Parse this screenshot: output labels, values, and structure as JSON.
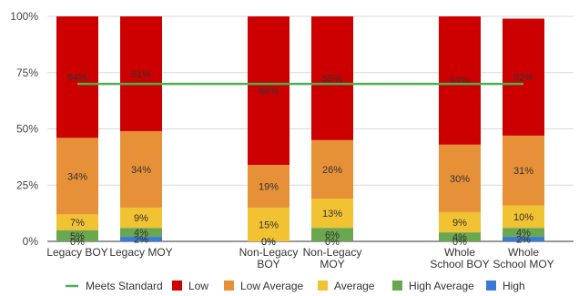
{
  "chart_data": {
    "type": "bar",
    "stacked": true,
    "percent_stacked": true,
    "categories": [
      {
        "lines": [
          "Legacy BOY"
        ]
      },
      {
        "lines": [
          "Legacy MOY"
        ]
      },
      null,
      {
        "lines": [
          "Non-Legacy",
          "BOY"
        ]
      },
      {
        "lines": [
          "Non-Legacy",
          "MOY"
        ]
      },
      null,
      {
        "lines": [
          "Whole",
          "School BOY"
        ]
      },
      {
        "lines": [
          "Whole",
          "School MOY"
        ]
      }
    ],
    "series": [
      {
        "name": "High",
        "color": "#3c78d8",
        "values": [
          0,
          2,
          null,
          0,
          0,
          null,
          0,
          2
        ],
        "labels": [
          "0%",
          "2%",
          null,
          "0%",
          "0%",
          null,
          "0%",
          "2%"
        ]
      },
      {
        "name": "High Average",
        "color": "#6aa84f",
        "values": [
          5,
          4,
          null,
          0,
          6,
          null,
          4,
          4
        ],
        "labels": [
          "5%",
          "4%",
          null,
          "0%",
          "6%",
          null,
          "4%",
          "4%"
        ]
      },
      {
        "name": "Average",
        "color": "#f1c232",
        "values": [
          7,
          9,
          null,
          15,
          13,
          null,
          9,
          10
        ],
        "labels": [
          "7%",
          "9%",
          null,
          "15%",
          "13%",
          null,
          "9%",
          "10%"
        ]
      },
      {
        "name": "Low Average",
        "color": "#e69138",
        "values": [
          34,
          34,
          null,
          19,
          26,
          null,
          30,
          31
        ],
        "labels": [
          "34%",
          "34%",
          null,
          "19%",
          "26%",
          null,
          "30%",
          "31%"
        ]
      },
      {
        "name": "Low",
        "color": "#cc0000",
        "values": [
          54,
          51,
          null,
          66,
          55,
          null,
          57,
          52
        ],
        "labels": [
          "54%",
          "51%",
          null,
          "66%",
          "55%",
          null,
          "57%",
          "52%"
        ]
      }
    ],
    "line_series": {
      "name": "Meets Standard",
      "color": "#4caf50",
      "value": 70
    },
    "ylim": [
      0,
      100
    ],
    "yticks": [
      "0%",
      "25%",
      "50%",
      "75%",
      "100%"
    ],
    "legend_position": "bottom",
    "legend_order": [
      "Meets Standard",
      "Low",
      "Low Average",
      "Average",
      "High Average",
      "High"
    ],
    "grid": true
  }
}
